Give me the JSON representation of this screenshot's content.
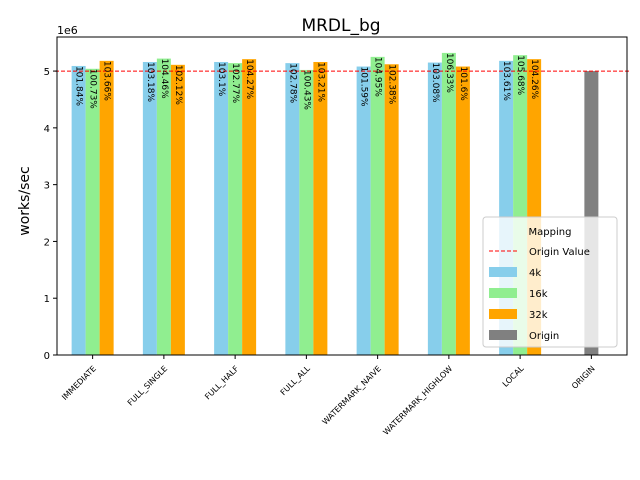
{
  "chart_data": {
    "type": "bar",
    "title": "MRDL_bg",
    "xlabel": "",
    "ylabel": "works/sec",
    "y_offset_text": "1e6",
    "y_multiplier": 1000000,
    "ylim": [
      0,
      5.6
    ],
    "yticks": [
      0,
      1,
      2,
      3,
      4,
      5
    ],
    "ytick_labels": [
      "0",
      "1",
      "2",
      "3",
      "4",
      "5"
    ],
    "grid": false,
    "categories": [
      "IMMEDIATE",
      "FULL_SINGLE",
      "FULL_HALF",
      "FULL_ALL",
      "WATERMARK_NAIVE",
      "WATERMARK_HIGHLOW",
      "LOCAL",
      "ORIGIN"
    ],
    "series": [
      {
        "name": "4k",
        "color": "#87ceeb",
        "values": [
          5.09,
          5.16,
          5.16,
          5.14,
          5.08,
          5.15,
          5.18,
          null
        ],
        "labels": [
          "101.84%",
          "103.18%",
          "103.1%",
          "102.78%",
          "101.59%",
          "103.08%",
          "103.61%",
          null
        ]
      },
      {
        "name": "16k",
        "color": "#90ee90",
        "values": [
          5.04,
          5.22,
          5.14,
          5.02,
          5.25,
          5.32,
          5.28,
          null
        ],
        "labels": [
          "100.73%",
          "104.46%",
          "102.77%",
          "100.43%",
          "104.95%",
          "106.33%",
          "105.68%",
          null
        ]
      },
      {
        "name": "32k",
        "color": "#ffa500",
        "values": [
          5.18,
          5.11,
          5.21,
          5.16,
          5.12,
          5.08,
          5.21,
          null
        ],
        "labels": [
          "103.66%",
          "102.12%",
          "104.27%",
          "103.21%",
          "102.38%",
          "101.6%",
          "104.26%",
          null
        ]
      },
      {
        "name": "Origin",
        "color": "#808080",
        "values": [
          null,
          null,
          null,
          null,
          null,
          null,
          null,
          5.0
        ],
        "labels": [
          null,
          null,
          null,
          null,
          null,
          null,
          null,
          null
        ]
      }
    ],
    "reference_line": {
      "name": "Origin Value",
      "value": 5.0,
      "color": "#ff0000",
      "style": "dashed"
    },
    "legend": {
      "title": "Mapping",
      "placement": "lower-right",
      "entries": [
        "Origin Value",
        "4k",
        "16k",
        "32k",
        "Origin"
      ]
    }
  }
}
